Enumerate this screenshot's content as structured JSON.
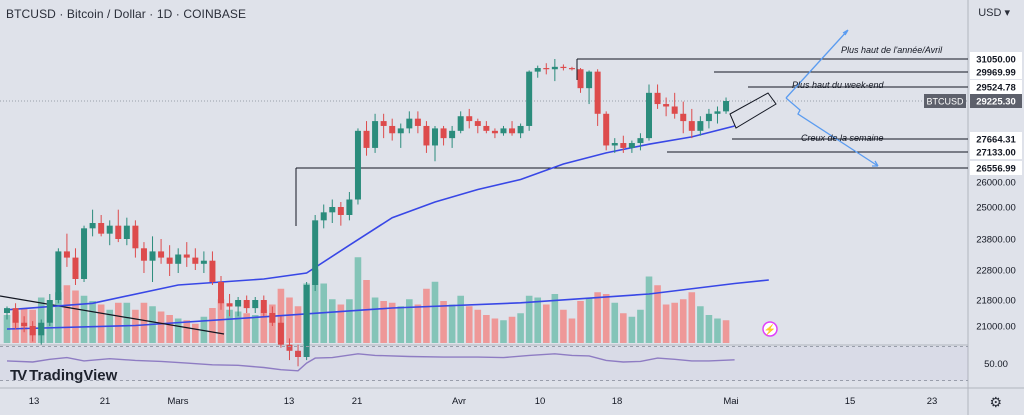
{
  "header": {
    "title": "BTCUSD · Bitcoin / Dollar · 1D · COINBASE",
    "currency": "USD"
  },
  "brand": {
    "name": "TradingView",
    "logo": "TV"
  },
  "colors": {
    "up": "#2b8c7c",
    "down": "#dd4b4c",
    "vol_up": "#84c4b8",
    "vol_down": "#ee9898",
    "ma": "#3847e6",
    "rsi": "#8e7cc3",
    "bg": "#dfe2ea"
  },
  "icons": {
    "settings": "gear-icon",
    "event": "lightning-icon"
  },
  "chart_data": {
    "type": "candlestick",
    "price_axis": {
      "ticks": [
        31050,
        29969.99,
        29524.78,
        29225.3,
        27664.31,
        27133,
        26556.99,
        26000,
        25000,
        23800,
        22800,
        21800,
        21000
      ],
      "labels": [
        "31050.00",
        "29969.99",
        "29524.78",
        "29225.30",
        "27664.31",
        "27133.00",
        "26556.99",
        "26000.00",
        "25000.00",
        "23800.00",
        "22800.00",
        "21800.00",
        "21000.00"
      ],
      "last_label": "BTCUSD",
      "last_value": "29225.30"
    },
    "rsi_axis": {
      "label": "50.00",
      "value": 50
    },
    "time_axis": {
      "labels": [
        "13",
        "21",
        "Mars",
        "13",
        "21",
        "Avr",
        "10",
        "18",
        "Mai",
        "15",
        "23"
      ]
    },
    "annotations": [
      "Plus haut de l'année/Avril",
      "Plus haut du week-end",
      "Creux de la semaine"
    ],
    "candles": [
      [
        21400,
        21600,
        21200,
        21550
      ],
      [
        21550,
        21700,
        20900,
        21100
      ],
      [
        21100,
        21300,
        20800,
        21000
      ],
      [
        21000,
        21150,
        20500,
        20700
      ],
      [
        20700,
        21200,
        20400,
        21100
      ],
      [
        21100,
        22000,
        21000,
        21800
      ],
      [
        21800,
        23500,
        21700,
        23400
      ],
      [
        23400,
        24000,
        22900,
        23200
      ],
      [
        23200,
        23500,
        22300,
        22500
      ],
      [
        22500,
        24300,
        22400,
        24200
      ],
      [
        24200,
        24900,
        23900,
        24400
      ],
      [
        24400,
        24700,
        23900,
        24000
      ],
      [
        24000,
        24500,
        23600,
        24300
      ],
      [
        24300,
        24900,
        23700,
        23800
      ],
      [
        23800,
        24600,
        23600,
        24300
      ],
      [
        24300,
        24500,
        23200,
        23500
      ],
      [
        23500,
        23700,
        22700,
        23100
      ],
      [
        23100,
        23900,
        22400,
        23400
      ],
      [
        23400,
        23800,
        23000,
        23200
      ],
      [
        23200,
        23600,
        22600,
        23000
      ],
      [
        23000,
        23500,
        22700,
        23300
      ],
      [
        23300,
        23700,
        22900,
        23200
      ],
      [
        23200,
        23500,
        22800,
        23000
      ],
      [
        23000,
        23400,
        22700,
        23100
      ],
      [
        23100,
        23400,
        22300,
        22400
      ],
      [
        22400,
        22600,
        21500,
        21700
      ],
      [
        21700,
        22000,
        21300,
        21600
      ],
      [
        21600,
        21900,
        21300,
        21800
      ],
      [
        21800,
        21950,
        21400,
        21550
      ],
      [
        21550,
        21900,
        21400,
        21800
      ],
      [
        21800,
        21950,
        21300,
        21400
      ],
      [
        21400,
        21600,
        21000,
        21100
      ],
      [
        21100,
        21300,
        20300,
        20400
      ],
      [
        20400,
        20600,
        19900,
        20200
      ],
      [
        20200,
        20400,
        19700,
        20000
      ],
      [
        20000,
        22400,
        19900,
        22300
      ],
      [
        22300,
        24700,
        22100,
        24500
      ],
      [
        24500,
        25100,
        24200,
        24800
      ],
      [
        24800,
        25300,
        24400,
        25000
      ],
      [
        25000,
        25200,
        24300,
        24700
      ],
      [
        24700,
        25600,
        24500,
        25300
      ],
      [
        25300,
        28100,
        25100,
        28000
      ],
      [
        28000,
        28400,
        27000,
        27300
      ],
      [
        27300,
        28700,
        27100,
        28400
      ],
      [
        28400,
        28700,
        27700,
        28200
      ],
      [
        28200,
        28500,
        27600,
        27900
      ],
      [
        27900,
        28300,
        27300,
        28100
      ],
      [
        28100,
        28800,
        27900,
        28500
      ],
      [
        28500,
        28800,
        27900,
        28200
      ],
      [
        28200,
        28400,
        27100,
        27400
      ],
      [
        27400,
        28200,
        26800,
        28100
      ],
      [
        28100,
        28200,
        27400,
        27700
      ],
      [
        27700,
        28200,
        27300,
        28000
      ],
      [
        28000,
        28800,
        27900,
        28600
      ],
      [
        28600,
        28900,
        28100,
        28400
      ],
      [
        28400,
        28500,
        27900,
        28200
      ],
      [
        28200,
        28400,
        27900,
        28000
      ],
      [
        28000,
        28100,
        27700,
        27900
      ],
      [
        27900,
        28200,
        27800,
        28100
      ],
      [
        28100,
        28400,
        27800,
        27900
      ],
      [
        27900,
        28300,
        27700,
        28200
      ],
      [
        28200,
        30100,
        28000,
        30000
      ],
      [
        30000,
        30500,
        29800,
        30300
      ],
      [
        30300,
        30700,
        29900,
        30200
      ],
      [
        30200,
        31050,
        29700,
        30400
      ],
      [
        30400,
        30600,
        30100,
        30300
      ],
      [
        30300,
        30400,
        30100,
        30200
      ],
      [
        30200,
        30300,
        29400,
        29500
      ],
      [
        29500,
        30100,
        29100,
        30000
      ],
      [
        30000,
        30200,
        28200,
        28700
      ],
      [
        28700,
        28800,
        27200,
        27400
      ],
      [
        27400,
        27700,
        27100,
        27500
      ],
      [
        27500,
        27800,
        27100,
        27300
      ],
      [
        27300,
        27600,
        27100,
        27500
      ],
      [
        27500,
        27900,
        27200,
        27700
      ],
      [
        27700,
        29600,
        27600,
        29400
      ],
      [
        29400,
        29600,
        28900,
        29100
      ],
      [
        29100,
        29300,
        28600,
        29000
      ],
      [
        29000,
        29400,
        28500,
        28700
      ],
      [
        28700,
        29200,
        27900,
        28400
      ],
      [
        28400,
        28900,
        27700,
        28000
      ],
      [
        28000,
        28600,
        27800,
        28400
      ],
      [
        28400,
        28900,
        28100,
        28700
      ],
      [
        28700,
        29000,
        28300,
        28800
      ],
      [
        28800,
        29300,
        28700,
        29225.3
      ]
    ],
    "volumes": [
      [
        1.6,
        1
      ],
      [
        1.8,
        0
      ],
      [
        2,
        0
      ],
      [
        1.9,
        0
      ],
      [
        2.6,
        1
      ],
      [
        1.9,
        1
      ],
      [
        2.9,
        1
      ],
      [
        3.3,
        0
      ],
      [
        3,
        0
      ],
      [
        2.7,
        1
      ],
      [
        2.4,
        1
      ],
      [
        2.2,
        0
      ],
      [
        1.9,
        1
      ],
      [
        2.3,
        0
      ],
      [
        2.3,
        1
      ],
      [
        1.9,
        0
      ],
      [
        2.3,
        0
      ],
      [
        2.1,
        1
      ],
      [
        1.8,
        0
      ],
      [
        1.6,
        0
      ],
      [
        1.4,
        1
      ],
      [
        1.3,
        0
      ],
      [
        1.1,
        0
      ],
      [
        1.5,
        1
      ],
      [
        2,
        0
      ],
      [
        2.5,
        0
      ],
      [
        1.9,
        1
      ],
      [
        1.8,
        1
      ],
      [
        1.7,
        0
      ],
      [
        1.6,
        1
      ],
      [
        1.9,
        0
      ],
      [
        2.2,
        0
      ],
      [
        3.1,
        0
      ],
      [
        2.6,
        0
      ],
      [
        2.1,
        0
      ],
      [
        3.4,
        1
      ],
      [
        4.2,
        1
      ],
      [
        3.4,
        1
      ],
      [
        2.5,
        1
      ],
      [
        2.2,
        0
      ],
      [
        2.5,
        1
      ],
      [
        4.9,
        1
      ],
      [
        3.6,
        0
      ],
      [
        2.6,
        1
      ],
      [
        2.4,
        0
      ],
      [
        2.3,
        0
      ],
      [
        2.1,
        1
      ],
      [
        2.5,
        1
      ],
      [
        2.2,
        0
      ],
      [
        3.1,
        0
      ],
      [
        3.5,
        1
      ],
      [
        2.4,
        0
      ],
      [
        2.2,
        1
      ],
      [
        2.7,
        1
      ],
      [
        2.1,
        0
      ],
      [
        1.9,
        0
      ],
      [
        1.6,
        0
      ],
      [
        1.4,
        0
      ],
      [
        1.3,
        1
      ],
      [
        1.5,
        0
      ],
      [
        1.7,
        1
      ],
      [
        2.7,
        1
      ],
      [
        2.6,
        1
      ],
      [
        2.2,
        0
      ],
      [
        2.8,
        1
      ],
      [
        1.9,
        0
      ],
      [
        1.4,
        0
      ],
      [
        2.4,
        0
      ],
      [
        2.6,
        1
      ],
      [
        2.9,
        0
      ],
      [
        2.8,
        0
      ],
      [
        2.3,
        1
      ],
      [
        1.7,
        0
      ],
      [
        1.5,
        1
      ],
      [
        1.9,
        1
      ],
      [
        3.8,
        1
      ],
      [
        3.3,
        0
      ],
      [
        2.2,
        0
      ],
      [
        2.3,
        0
      ],
      [
        2.5,
        0
      ],
      [
        2.9,
        0
      ],
      [
        2.1,
        1
      ],
      [
        1.6,
        1
      ],
      [
        1.4,
        1
      ],
      [
        1.3,
        0
      ]
    ],
    "ma": [
      [
        0,
        21500
      ],
      [
        10,
        21700
      ],
      [
        20,
        22300
      ],
      [
        30,
        22500
      ],
      [
        35,
        22700
      ],
      [
        40,
        23600
      ],
      [
        45,
        24600
      ],
      [
        50,
        25200
      ],
      [
        55,
        25700
      ],
      [
        60,
        26100
      ],
      [
        65,
        26700
      ],
      [
        70,
        27100
      ],
      [
        75,
        27450
      ],
      [
        80,
        27750
      ],
      [
        85,
        28200
      ]
    ],
    "vol_ma": [
      [
        0,
        0.8
      ],
      [
        15,
        1.0
      ],
      [
        30,
        1.5
      ],
      [
        45,
        2.0
      ],
      [
        60,
        2.3
      ],
      [
        75,
        2.8
      ],
      [
        85,
        3.4
      ]
    ],
    "rsi": [
      [
        0,
        52
      ],
      [
        3,
        50
      ],
      [
        5,
        55
      ],
      [
        7,
        58
      ],
      [
        9,
        52
      ],
      [
        12,
        56
      ],
      [
        15,
        53
      ],
      [
        18,
        51
      ],
      [
        21,
        48
      ],
      [
        24,
        45
      ],
      [
        27,
        44
      ],
      [
        30,
        40
      ],
      [
        32,
        36
      ],
      [
        34,
        34
      ],
      [
        35,
        48
      ],
      [
        36,
        57
      ],
      [
        38,
        58
      ],
      [
        41,
        65
      ],
      [
        43,
        62
      ],
      [
        47,
        60
      ],
      [
        51,
        59
      ],
      [
        55,
        59
      ],
      [
        58,
        58
      ],
      [
        61,
        62
      ],
      [
        64,
        65
      ],
      [
        66,
        62
      ],
      [
        68,
        61
      ],
      [
        70,
        53
      ],
      [
        72,
        50
      ],
      [
        74,
        51
      ],
      [
        76,
        57
      ],
      [
        78,
        55
      ],
      [
        80,
        52
      ],
      [
        82,
        52
      ],
      [
        85,
        54
      ]
    ],
    "rsi_bands": [
      70,
      30
    ]
  }
}
